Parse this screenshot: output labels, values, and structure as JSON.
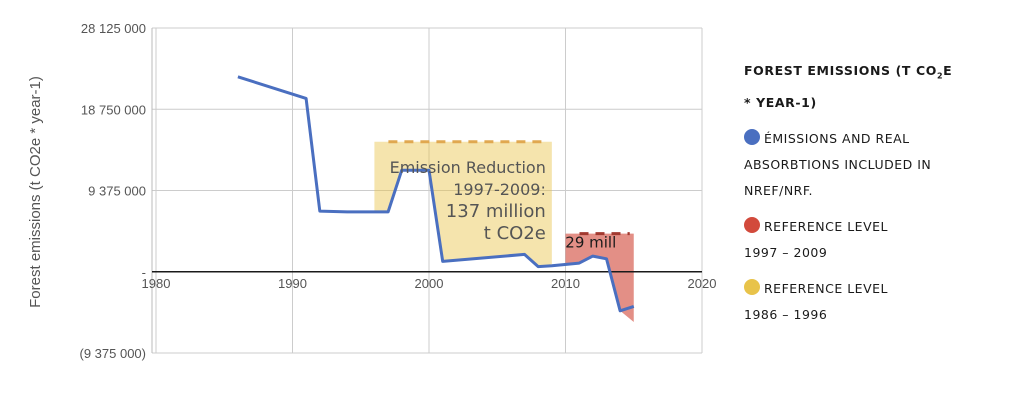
{
  "chart_data": {
    "type": "line",
    "ylabel": "Forest emissions (t CO2e * year-1)",
    "xlim": [
      1980,
      2020
    ],
    "ylim": [
      -9375000,
      28125000
    ],
    "xticks": [
      1980,
      1990,
      2000,
      2010,
      2020
    ],
    "ytick_values": [
      28125000,
      18750000,
      9375000,
      0,
      -9375000
    ],
    "ytick_labels": [
      "28 125 000",
      "18 750 000",
      "9 375 000",
      "-",
      "(9 375 000)"
    ],
    "grid": true,
    "series": [
      {
        "name": "ÉMISSIONS AND REAL ABSORBTIONS INCLUDED IN NREF/NRF.",
        "color": "#4a6fc0",
        "x": [
          1986,
          1991,
          1992,
          1994,
          1996,
          1997,
          1998,
          2000,
          2001,
          2007,
          2008,
          2009,
          2011,
          2012,
          2013,
          2014,
          2015
        ],
        "y": [
          22500000,
          20000000,
          7000000,
          6900000,
          6900000,
          6900000,
          11700000,
          11700000,
          1200000,
          2000000,
          600000,
          700000,
          1000000,
          1800000,
          1500000,
          -4500000,
          -4000000
        ]
      }
    ],
    "reference_areas": [
      {
        "name": "REFERENCE LEVEL 1986 – 1996",
        "x": [
          1996,
          2009
        ],
        "level": 15000000,
        "color": "#e8c34a"
      },
      {
        "name": "REFERENCE LEVEL 1997 – 2009",
        "x": [
          2010,
          2015
        ],
        "level": 4400000,
        "color": "#d24a3c"
      }
    ],
    "annotations": [
      {
        "text_lines": [
          "Emission Reduction",
          "1997-2009:",
          "137 million",
          "t CO2e"
        ],
        "x": 2009,
        "y": 11400000
      },
      {
        "text": "29 mill",
        "x": 2012,
        "y": 2800000
      }
    ],
    "legend": {
      "title_part1": "FOREST EMISSIONS (T CO",
      "title_sub": "2",
      "title_part2": "E",
      "title_line2": "* YEAR-1)",
      "position": "right",
      "items": [
        {
          "line1": "ÉMISSIONS AND REAL",
          "line2": "ABSORBTIONS INCLUDED IN",
          "line3": "NREF/NRF.",
          "color": "#4a6fc0"
        },
        {
          "line1": "REFERENCE LEVEL",
          "line2": "1997 – 2009",
          "color": "#d24a3c"
        },
        {
          "line1": "REFERENCE LEVEL",
          "line2": "1986 – 1996",
          "color": "#e8c34a"
        }
      ]
    }
  }
}
